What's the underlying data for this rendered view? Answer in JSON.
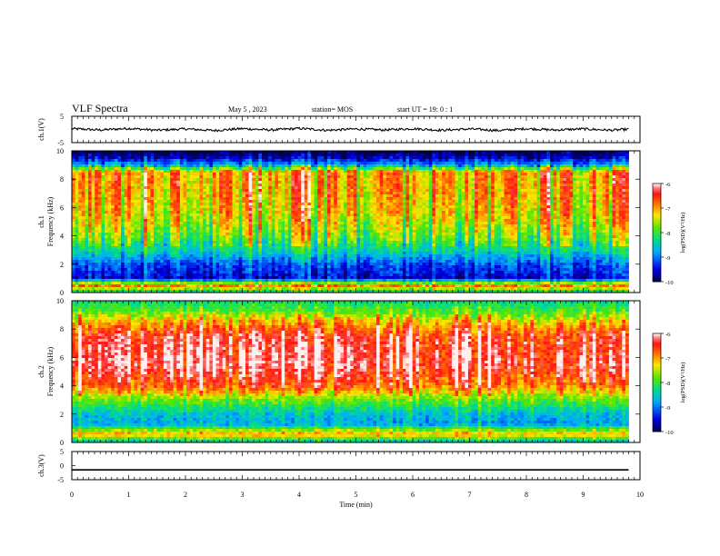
{
  "header": {
    "title": "VLF Spectra",
    "date": "May 5 , 2023",
    "station": "station= MOS",
    "start": "start UT = 19: 0 : 1"
  },
  "chart_data": [
    {
      "type": "line",
      "panel": "ch1-waveform",
      "ylabel": "ch.1(V)",
      "ylim": [
        -5,
        5
      ],
      "y_ticks": [
        "5",
        "-5"
      ],
      "x": [
        0,
        0.5,
        1,
        1.5,
        2,
        2.5,
        3,
        3.5,
        4,
        4.5,
        5,
        5.5,
        6,
        6.5,
        7,
        7.5,
        8,
        8.5,
        9,
        9.5,
        9.8
      ],
      "values": [
        0.3,
        -0.2,
        0.4,
        -0.3,
        0.2,
        -0.4,
        0.3,
        -0.2,
        0.4,
        -0.3,
        0.2,
        -0.2,
        0.3,
        -0.3,
        0.2,
        -0.4,
        0.3,
        -0.2,
        0.2,
        -0.3,
        0.1
      ]
    },
    {
      "type": "heatmap",
      "panel": "ch1-spectrogram",
      "ylabel": "ch.1\nFrequency (kHz)",
      "ylabel_lines": [
        "ch.1",
        "Frequency (kHz)"
      ],
      "ylim": [
        0,
        10
      ],
      "y_ticks": [
        "0",
        "2",
        "4",
        "6",
        "8",
        "10"
      ],
      "colorbar": {
        "label": "log(PSD)(V²/Hz)",
        "range": [
          -10,
          -6
        ],
        "ticks": [
          "-6",
          "-7",
          "-8",
          "-9",
          "-10"
        ]
      },
      "band_profile": [
        {
          "f": 0.0,
          "level": -8.5
        },
        {
          "f": 0.5,
          "level": -6.8
        },
        {
          "f": 1.0,
          "level": -9.6
        },
        {
          "f": 2.0,
          "level": -9.2
        },
        {
          "f": 3.0,
          "level": -8.4
        },
        {
          "f": 4.0,
          "level": -7.8
        },
        {
          "f": 5.5,
          "level": -7.3
        },
        {
          "f": 7.0,
          "level": -7.1
        },
        {
          "f": 8.5,
          "level": -7.0
        },
        {
          "f": 9.0,
          "level": -8.8
        },
        {
          "f": 9.6,
          "level": -9.8
        },
        {
          "f": 10.0,
          "level": -10.0
        }
      ]
    },
    {
      "type": "heatmap",
      "panel": "ch2-spectrogram",
      "ylabel": "ch.2\nFrequency (kHz)",
      "ylabel_lines": [
        "ch.2",
        "Frequency (kHz)"
      ],
      "ylim": [
        0,
        10
      ],
      "y_ticks": [
        "0",
        "2",
        "4",
        "6",
        "8",
        "10"
      ],
      "colorbar": {
        "label": "log(PSD)(V²/Hz)",
        "range": [
          -10,
          -6
        ],
        "ticks": [
          "-6",
          "-7",
          "-8",
          "-9",
          "-10"
        ]
      },
      "band_profile": [
        {
          "f": 0.0,
          "level": -8.6
        },
        {
          "f": 0.6,
          "level": -7.0
        },
        {
          "f": 1.3,
          "level": -8.8
        },
        {
          "f": 2.0,
          "level": -8.6
        },
        {
          "f": 3.0,
          "level": -7.8
        },
        {
          "f": 4.0,
          "level": -6.7
        },
        {
          "f": 5.5,
          "level": -6.2
        },
        {
          "f": 7.5,
          "level": -6.4
        },
        {
          "f": 8.5,
          "level": -7.1
        },
        {
          "f": 9.3,
          "level": -7.9
        },
        {
          "f": 10.0,
          "level": -8.3
        }
      ]
    },
    {
      "type": "line",
      "panel": "ch3-waveform",
      "ylabel": "ch.3(V)",
      "ylim": [
        -5,
        5
      ],
      "y_ticks": [
        "5",
        "0",
        "-5"
      ],
      "x": [
        0,
        9.8
      ],
      "values": [
        -1.5,
        -1.5
      ],
      "xlabel": "Time (min)",
      "xlim": [
        0,
        10
      ],
      "x_ticks": [
        "0",
        "1",
        "2",
        "3",
        "4",
        "5",
        "6",
        "7",
        "8",
        "9",
        "10"
      ]
    }
  ]
}
